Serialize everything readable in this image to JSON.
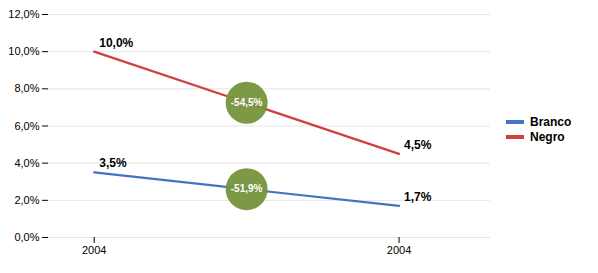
{
  "chart_data": {
    "type": "line",
    "categories": [
      "2004",
      "2004"
    ],
    "series": [
      {
        "name": "Branco",
        "color": "#4472C4",
        "values": [
          3.5,
          1.7
        ],
        "value_labels": [
          "3,5%",
          "1,7%"
        ]
      },
      {
        "name": "Negro",
        "color": "#D04040",
        "values": [
          10.0,
          4.5
        ],
        "value_labels": [
          "10,0%",
          "4,5%"
        ]
      }
    ],
    "annotations": [
      {
        "text": "-54,5%",
        "series": "Negro",
        "color": "#76933C"
      },
      {
        "text": "-51,9%",
        "series": "Branco",
        "color": "#76933C"
      }
    ],
    "ylim": [
      0,
      12
    ],
    "yticks": [
      {
        "value": 0,
        "label": "0,0%"
      },
      {
        "value": 2,
        "label": "2,0%"
      },
      {
        "value": 4,
        "label": "4,0%"
      },
      {
        "value": 6,
        "label": "6,0%"
      },
      {
        "value": 8,
        "label": "8,0%"
      },
      {
        "value": 10,
        "label": "10,0%"
      },
      {
        "value": 12,
        "label": "12,0%"
      }
    ],
    "grid": true,
    "legend": "right",
    "data_labels": true
  }
}
